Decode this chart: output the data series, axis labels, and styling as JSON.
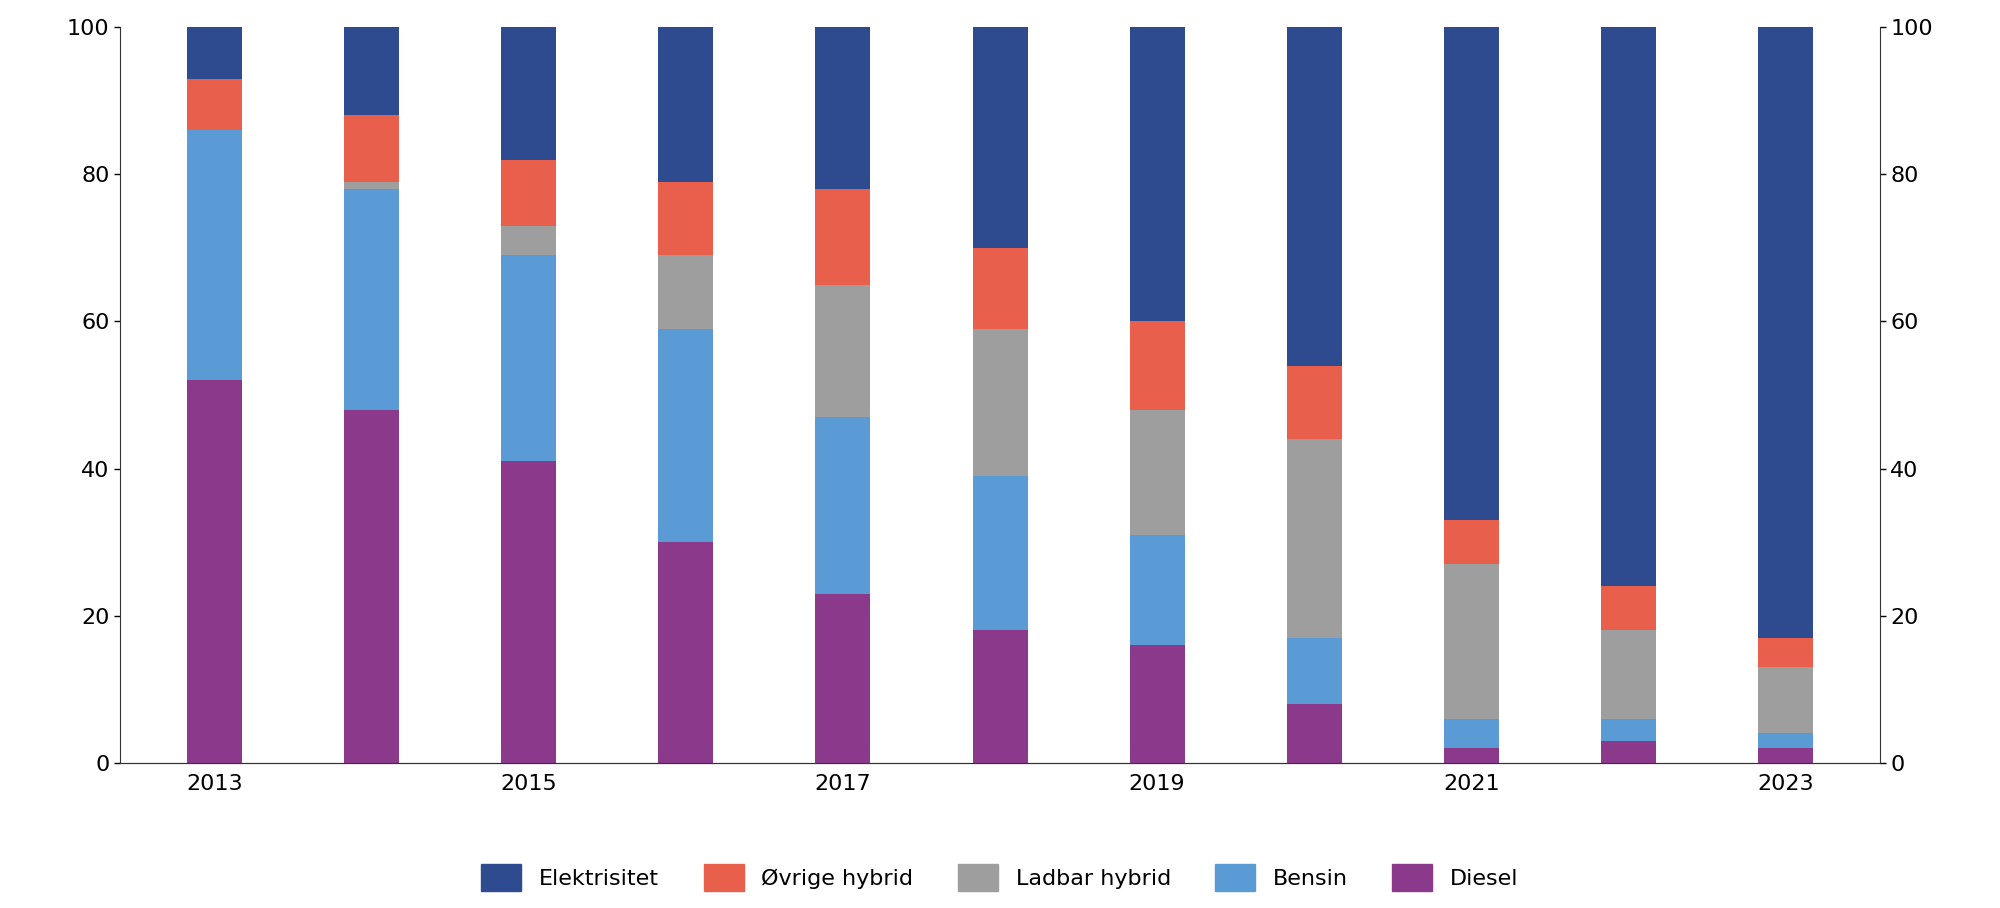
{
  "years": [
    2013,
    2014,
    2015,
    2016,
    2017,
    2018,
    2019,
    2020,
    2021,
    2022,
    2023
  ],
  "categories": [
    "Diesel",
    "Bensin",
    "Ladbar hybrid",
    "Øvrige hybrid",
    "Elektrisitet"
  ],
  "colors": [
    "#8B3A8B",
    "#5B9BD5",
    "#9E9E9E",
    "#E8604C",
    "#2F4B8F"
  ],
  "data": {
    "Diesel": [
      52,
      48,
      41,
      30,
      23,
      18,
      16,
      8,
      2,
      3,
      2
    ],
    "Bensin": [
      34,
      30,
      28,
      29,
      24,
      21,
      15,
      9,
      4,
      3,
      2
    ],
    "Ladbar hybrid": [
      0,
      1,
      4,
      10,
      18,
      20,
      17,
      27,
      21,
      12,
      9
    ],
    "Øvrige hybrid": [
      7,
      9,
      9,
      10,
      13,
      11,
      12,
      10,
      6,
      6,
      4
    ],
    "Elektrisitet": [
      7,
      12,
      18,
      21,
      22,
      30,
      40,
      46,
      67,
      76,
      83
    ]
  },
  "legend_order": [
    "Elektrisitet",
    "Øvrige hybrid",
    "Ladbar hybrid",
    "Bensin",
    "Diesel"
  ],
  "ylim": [
    0,
    100
  ],
  "yticks": [
    0,
    20,
    40,
    60,
    80,
    100
  ],
  "background_color": "#FFFFFF",
  "plot_bg_color": "#FFFFFF",
  "bar_width": 0.35,
  "figsize": [
    20.0,
    9.08
  ],
  "dpi": 100
}
